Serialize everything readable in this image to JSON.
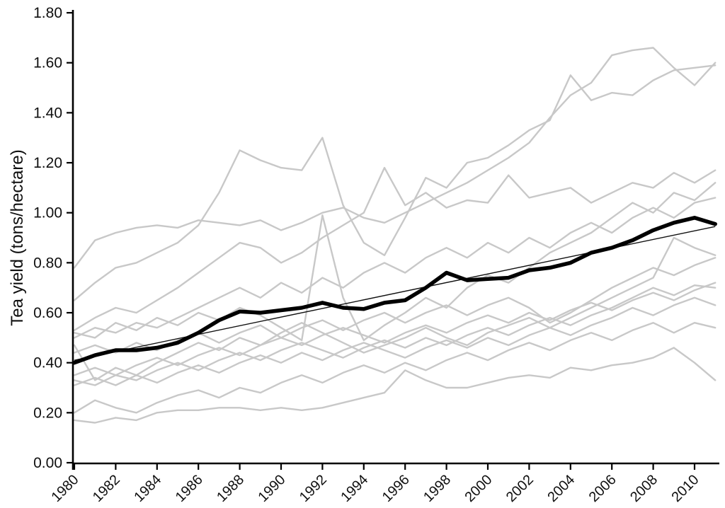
{
  "chart_data": {
    "type": "line",
    "title": "",
    "xlabel": "",
    "ylabel": "Tea yield (tons/hectare)",
    "ylim": [
      0.0,
      1.8
    ],
    "y_tick_step": 0.2,
    "y_tick_labels": [
      "0.00",
      "0.20",
      "0.40",
      "0.60",
      "0.80",
      "1.00",
      "1.20",
      "1.40",
      "1.60",
      "1.80"
    ],
    "x_tick_labels": [
      "1980",
      "1982",
      "1984",
      "1986",
      "1988",
      "1990",
      "1992",
      "1994",
      "1996",
      "1998",
      "2000",
      "2002",
      "2004",
      "2006",
      "2008",
      "2010"
    ],
    "x_tick_years": [
      1980,
      1982,
      1984,
      1986,
      1988,
      1990,
      1992,
      1994,
      1996,
      1998,
      2000,
      2002,
      2004,
      2006,
      2008,
      2010
    ],
    "grid": false,
    "legend_position": "none",
    "colors": {
      "background": "#ffffff",
      "gray_series": "#c8c8c8",
      "mean_series": "#000000",
      "trend_line": "#111111",
      "axis": "#000000"
    },
    "x": [
      1980,
      1981,
      1982,
      1983,
      1984,
      1985,
      1986,
      1987,
      1988,
      1989,
      1990,
      1991,
      1992,
      1993,
      1994,
      1995,
      1996,
      1997,
      1998,
      1999,
      2000,
      2001,
      2002,
      2003,
      2004,
      2005,
      2006,
      2007,
      2008,
      2009,
      2010,
      2011
    ],
    "series": [
      {
        "name": "gray-series-1",
        "values": [
          0.78,
          0.89,
          0.92,
          0.94,
          0.95,
          0.94,
          0.97,
          0.96,
          0.95,
          0.97,
          0.93,
          0.96,
          1.0,
          1.02,
          0.98,
          0.96,
          1.0,
          1.04,
          1.08,
          1.12,
          1.17,
          1.22,
          1.28,
          1.38,
          1.47,
          1.52,
          1.63,
          1.65,
          1.66,
          1.58,
          1.51,
          1.6
        ]
      },
      {
        "name": "gray-series-2",
        "values": [
          0.65,
          0.72,
          0.78,
          0.8,
          0.84,
          0.88,
          0.95,
          1.08,
          1.25,
          1.21,
          1.18,
          1.17,
          1.3,
          1.03,
          0.88,
          0.83,
          0.98,
          1.14,
          1.1,
          1.2,
          1.22,
          1.27,
          1.33,
          1.37,
          1.55,
          1.45,
          1.48,
          1.47,
          1.53,
          1.57,
          1.58,
          1.59
        ]
      },
      {
        "name": "gray-series-3",
        "values": [
          0.53,
          0.58,
          0.62,
          0.6,
          0.65,
          0.7,
          0.76,
          0.82,
          0.88,
          0.86,
          0.8,
          0.84,
          0.9,
          0.95,
          1.0,
          1.18,
          1.03,
          1.08,
          1.02,
          1.05,
          1.04,
          1.15,
          1.06,
          1.08,
          1.1,
          1.04,
          1.08,
          1.12,
          1.1,
          1.16,
          1.12,
          1.17
        ]
      },
      {
        "name": "gray-series-4",
        "values": [
          0.52,
          0.5,
          0.56,
          0.53,
          0.58,
          0.55,
          0.6,
          0.57,
          0.62,
          0.59,
          0.54,
          0.49,
          0.99,
          0.66,
          0.49,
          0.55,
          0.6,
          0.66,
          0.62,
          0.7,
          0.75,
          0.72,
          0.78,
          0.84,
          0.88,
          0.92,
          0.98,
          1.04,
          1.0,
          1.08,
          1.05,
          1.12
        ]
      },
      {
        "name": "gray-series-5",
        "values": [
          0.5,
          0.54,
          0.52,
          0.56,
          0.54,
          0.58,
          0.62,
          0.66,
          0.7,
          0.66,
          0.72,
          0.68,
          0.74,
          0.7,
          0.76,
          0.8,
          0.76,
          0.82,
          0.86,
          0.82,
          0.88,
          0.84,
          0.9,
          0.86,
          0.92,
          0.96,
          0.92,
          0.98,
          1.02,
          0.98,
          1.04,
          1.06
        ]
      },
      {
        "name": "gray-series-6",
        "values": [
          0.47,
          0.33,
          0.38,
          0.35,
          0.4,
          0.44,
          0.48,
          0.45,
          0.5,
          0.47,
          0.52,
          0.56,
          0.52,
          0.48,
          0.44,
          0.47,
          0.5,
          0.54,
          0.5,
          0.47,
          0.52,
          0.55,
          0.58,
          0.54,
          0.58,
          0.62,
          0.66,
          0.7,
          0.74,
          0.9,
          0.86,
          0.83
        ]
      },
      {
        "name": "gray-series-7",
        "values": [
          0.44,
          0.47,
          0.44,
          0.48,
          0.45,
          0.49,
          0.52,
          0.48,
          0.52,
          0.55,
          0.5,
          0.54,
          0.57,
          0.53,
          0.57,
          0.6,
          0.56,
          0.6,
          0.63,
          0.59,
          0.63,
          0.66,
          0.62,
          0.56,
          0.6,
          0.65,
          0.7,
          0.74,
          0.78,
          0.75,
          0.79,
          0.82
        ]
      },
      {
        "name": "gray-series-8",
        "values": [
          0.35,
          0.38,
          0.35,
          0.39,
          0.42,
          0.39,
          0.43,
          0.46,
          0.43,
          0.47,
          0.5,
          0.47,
          0.51,
          0.54,
          0.51,
          0.48,
          0.52,
          0.55,
          0.52,
          0.56,
          0.59,
          0.56,
          0.6,
          0.57,
          0.61,
          0.64,
          0.61,
          0.65,
          0.68,
          0.65,
          0.69,
          0.72
        ]
      },
      {
        "name": "gray-series-9",
        "values": [
          0.33,
          0.31,
          0.35,
          0.33,
          0.37,
          0.4,
          0.37,
          0.41,
          0.44,
          0.41,
          0.45,
          0.48,
          0.45,
          0.42,
          0.46,
          0.49,
          0.46,
          0.5,
          0.47,
          0.51,
          0.54,
          0.51,
          0.55,
          0.58,
          0.55,
          0.59,
          0.62,
          0.66,
          0.7,
          0.67,
          0.71,
          0.7
        ]
      },
      {
        "name": "gray-series-10",
        "values": [
          0.31,
          0.34,
          0.31,
          0.35,
          0.32,
          0.36,
          0.39,
          0.36,
          0.4,
          0.43,
          0.4,
          0.44,
          0.41,
          0.45,
          0.48,
          0.45,
          0.42,
          0.46,
          0.49,
          0.46,
          0.5,
          0.47,
          0.51,
          0.54,
          0.51,
          0.55,
          0.58,
          0.62,
          0.59,
          0.63,
          0.66,
          0.63
        ]
      },
      {
        "name": "gray-series-11",
        "values": [
          0.2,
          0.25,
          0.22,
          0.2,
          0.24,
          0.27,
          0.29,
          0.26,
          0.3,
          0.28,
          0.32,
          0.35,
          0.32,
          0.36,
          0.39,
          0.36,
          0.4,
          0.37,
          0.41,
          0.44,
          0.41,
          0.45,
          0.48,
          0.45,
          0.49,
          0.52,
          0.49,
          0.53,
          0.56,
          0.52,
          0.56,
          0.54
        ]
      },
      {
        "name": "gray-series-12",
        "values": [
          0.17,
          0.16,
          0.18,
          0.17,
          0.2,
          0.21,
          0.21,
          0.22,
          0.22,
          0.21,
          0.22,
          0.21,
          0.22,
          0.24,
          0.26,
          0.28,
          0.37,
          0.33,
          0.3,
          0.3,
          0.32,
          0.34,
          0.35,
          0.34,
          0.38,
          0.37,
          0.39,
          0.4,
          0.42,
          0.46,
          0.4,
          0.33
        ]
      }
    ],
    "mean_series": {
      "name": "mean-yield",
      "values": [
        0.4,
        0.43,
        0.45,
        0.45,
        0.46,
        0.48,
        0.52,
        0.57,
        0.605,
        0.6,
        0.61,
        0.62,
        0.64,
        0.62,
        0.615,
        0.64,
        0.65,
        0.7,
        0.76,
        0.73,
        0.735,
        0.74,
        0.77,
        0.78,
        0.8,
        0.84,
        0.86,
        0.89,
        0.93,
        0.96,
        0.98,
        0.955
      ]
    },
    "trend_line": {
      "name": "linear-trend",
      "x": [
        1980,
        2011
      ],
      "values": [
        0.41,
        0.945
      ]
    }
  }
}
